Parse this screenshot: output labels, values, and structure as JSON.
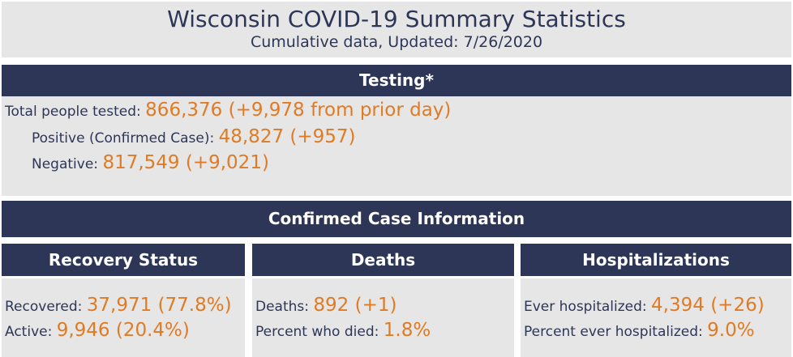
{
  "header": {
    "title": "Wisconsin COVID-19 Summary Statistics",
    "subtitle": "Cumulative data, Updated: 7/26/2020"
  },
  "testing": {
    "title": "Testing*",
    "total_label": "Total people tested: ",
    "total_value": "866,376 (+9,978 from prior day)",
    "positive_label": "Positive (Confirmed Case): ",
    "positive_value": "48,827 (+957)",
    "negative_label": "Negative: ",
    "negative_value": "817,549 (+9,021)"
  },
  "confirmed": {
    "title": "Confirmed Case Information"
  },
  "recovery": {
    "title": "Recovery Status",
    "recovered_label": "Recovered: ",
    "recovered_value": "37,971 (77.8%)",
    "active_label": "Active: ",
    "active_value": "9,946 (20.4%)"
  },
  "deaths": {
    "title": "Deaths",
    "deaths_label": "Deaths: ",
    "deaths_value": "892 (+1)",
    "percent_label": "Percent who died: ",
    "percent_value": "1.8%"
  },
  "hosp": {
    "title": "Hospitalizations",
    "ever_label": "Ever hospitalized: ",
    "ever_value": "4,394 (+26)",
    "percent_label": "Percent ever hospitalized: ",
    "percent_value": "9.0%"
  },
  "colors": {
    "navy": "#2e3657",
    "orange": "#e07b24",
    "panel": "#e6e6e6"
  }
}
